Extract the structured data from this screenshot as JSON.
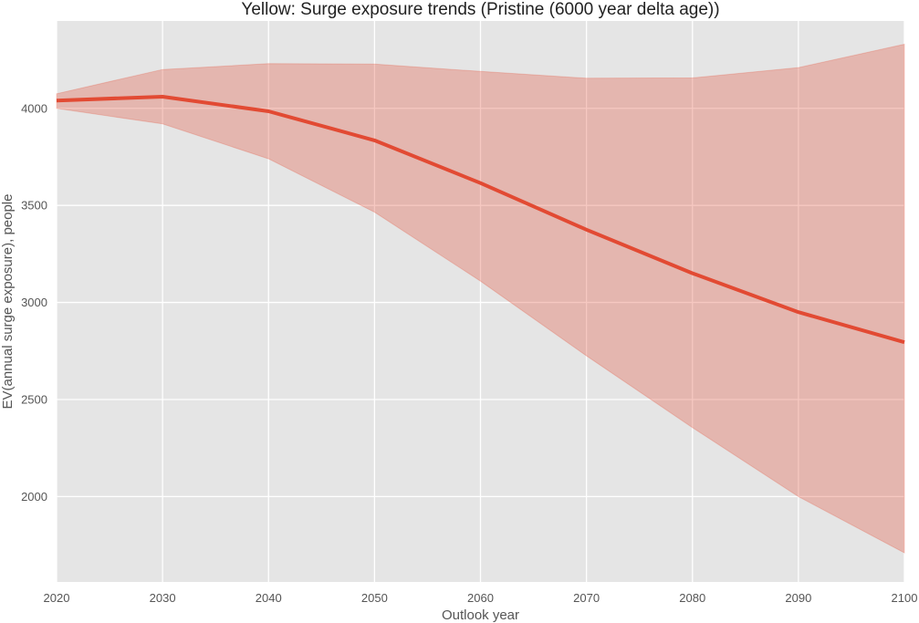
{
  "chart_data": {
    "type": "line",
    "title": "Yellow: Surge exposure trends (Pristine (6000 year delta age))",
    "xlabel": "Outlook year",
    "ylabel": "EV(annual surge exposure), people",
    "x": [
      2020,
      2030,
      2040,
      2050,
      2060,
      2070,
      2080,
      2090,
      2100
    ],
    "series": [
      {
        "values": [
          4040,
          4060,
          3985,
          3835,
          3615,
          3375,
          3150,
          2950,
          2795
        ],
        "band_upper": [
          4075,
          4200,
          4230,
          4228,
          4190,
          4155,
          4157,
          4210,
          4330
        ],
        "band_lower": [
          4000,
          3920,
          3740,
          3465,
          3110,
          2725,
          2355,
          2000,
          1710
        ]
      }
    ],
    "xlim": [
      2020,
      2100
    ],
    "ylim": [
      1560,
      4450
    ],
    "xticks": [
      "2020",
      "2030",
      "2040",
      "2050",
      "2060",
      "2070",
      "2080",
      "2090",
      "2100"
    ],
    "yticks": [
      "2000",
      "2500",
      "3000",
      "3500",
      "4000"
    ],
    "grid": true,
    "colors": {
      "line": "#e24a33",
      "band": "#e24a33",
      "background": "#e5e5e5",
      "grid": "#ffffff"
    }
  }
}
